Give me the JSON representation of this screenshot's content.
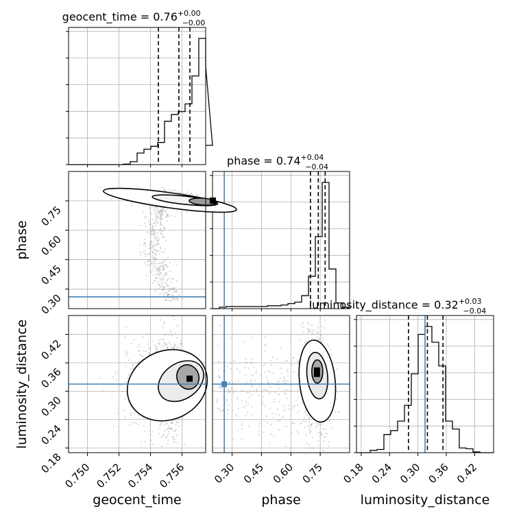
{
  "chart_data": {
    "type": "corner",
    "parameters": [
      "geocent_time",
      "phase",
      "luminosity_distance"
    ],
    "titles": {
      "geocent_time": {
        "name": "geocent_time",
        "value": "0.76",
        "plus": "+0.00",
        "minus": "−0.00"
      },
      "phase": {
        "name": "phase",
        "value": "0.74",
        "plus": "+0.04",
        "minus": "−0.04"
      },
      "luminosity_distance": {
        "name": "luminosity_distance",
        "value": "0.32",
        "plus": "+0.03",
        "minus": "−0.04"
      }
    },
    "axis_labels": [
      "geocent_time",
      "phase",
      "luminosity_distance"
    ],
    "ranges": {
      "geocent_time": [
        0.7488,
        0.7575
      ],
      "phase": [
        0.2,
        0.9
      ],
      "luminosity_distance": [
        0.17,
        0.46
      ]
    },
    "ticks": {
      "geocent_time": [
        "0.750",
        "0.752",
        "0.754",
        "0.756"
      ],
      "phase": [
        "0.30",
        "0.45",
        "0.60",
        "0.75"
      ],
      "luminosity_distance": [
        "0.18",
        "0.24",
        "0.30",
        "0.36",
        "0.42"
      ]
    },
    "tick_values": {
      "geocent_time": [
        0.75,
        0.752,
        0.754,
        0.756
      ],
      "phase": [
        0.3,
        0.45,
        0.6,
        0.75
      ],
      "luminosity_distance": [
        0.18,
        0.24,
        0.3,
        0.36,
        0.42
      ]
    },
    "injection": {
      "phase": 0.26,
      "luminosity_distance": 0.315
    },
    "quantile_lines": {
      "geocent_time": [
        0.7545,
        0.7558,
        0.7565
      ],
      "phase": [
        0.7,
        0.74,
        0.775
      ],
      "luminosity_distance": [
        0.28,
        0.32,
        0.353
      ]
    },
    "histograms": {
      "geocent_time": {
        "edges_start": 0.7488,
        "bin_width": 0.000435,
        "counts": [
          0,
          0,
          0,
          0,
          0,
          0,
          0,
          0,
          0.5,
          3,
          12,
          16,
          19,
          23,
          45,
          52,
          55,
          63,
          92,
          131,
          102,
          20
        ]
      },
      "phase": {
        "edges_start": 0.2,
        "bin_width": 0.035,
        "counts": [
          0,
          2,
          3,
          3,
          3,
          3,
          3,
          3,
          4,
          4,
          5,
          7,
          9,
          18,
          45,
          100,
          175,
          55,
          8,
          2
        ]
      },
      "luminosity_distance": {
        "edges_start": 0.17,
        "bin_width": 0.0145,
        "counts": [
          0,
          0,
          3,
          4,
          23,
          28,
          40,
          60,
          100,
          150,
          160,
          140,
          110,
          40,
          30,
          6,
          5,
          1,
          0,
          0
        ]
      }
    },
    "grid": true,
    "colors": {
      "hist": "#000000",
      "injection": "#4682b4",
      "points": "#9a9a9a",
      "grid": "#b0b0b0"
    }
  }
}
